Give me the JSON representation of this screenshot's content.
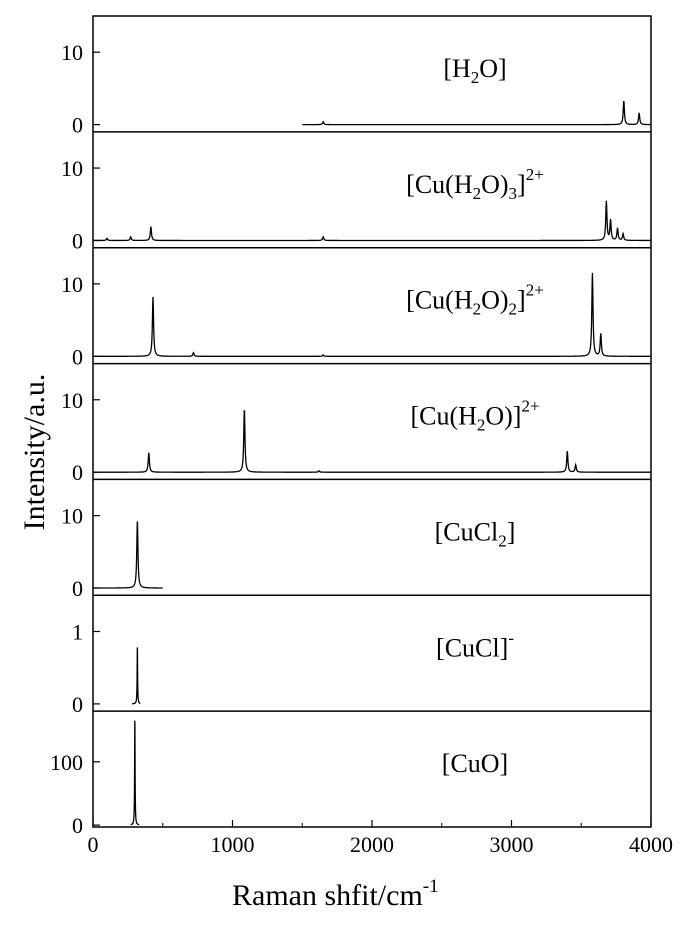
{
  "chart_data": {
    "type": "line",
    "xlabel": "Raman shfit/cm",
    "xlabel_sup": "-1",
    "ylabel": "Intensity/a.u.",
    "xlim": [
      0,
      4000
    ],
    "xticks": [
      0,
      1000,
      2000,
      3000,
      4000
    ],
    "grid": false,
    "legend": "none",
    "line_color": "#000000",
    "panels": [
      {
        "label": [
          {
            "t": "[H"
          },
          {
            "t": "2",
            "sub": true
          },
          {
            "t": "O]"
          }
        ],
        "ylim": [
          -1,
          15
        ],
        "yticks": [
          0,
          10
        ],
        "x_range": [
          1500,
          4000
        ],
        "peaks": [
          {
            "x": 1650,
            "y": 0.4
          },
          {
            "x": 3805,
            "y": 3.3
          },
          {
            "x": 3915,
            "y": 1.6
          }
        ]
      },
      {
        "label": [
          {
            "t": "[Cu(H"
          },
          {
            "t": "2",
            "sub": true
          },
          {
            "t": "O)"
          },
          {
            "t": "3",
            "sub": true
          },
          {
            "t": "]"
          },
          {
            "t": "2+",
            "sup": true
          }
        ],
        "ylim": [
          -1,
          15
        ],
        "yticks": [
          0,
          10
        ],
        "x_range": [
          0,
          4000
        ],
        "peaks": [
          {
            "x": 100,
            "y": 0.3
          },
          {
            "x": 270,
            "y": 0.5
          },
          {
            "x": 415,
            "y": 1.9
          },
          {
            "x": 1650,
            "y": 0.5
          },
          {
            "x": 3680,
            "y": 5.4
          },
          {
            "x": 3710,
            "y": 2.8
          },
          {
            "x": 3760,
            "y": 1.7
          },
          {
            "x": 3800,
            "y": 0.9
          }
        ]
      },
      {
        "label": [
          {
            "t": "[Cu(H"
          },
          {
            "t": "2",
            "sub": true
          },
          {
            "t": "O)"
          },
          {
            "t": "2",
            "sub": true
          },
          {
            "t": "]"
          },
          {
            "t": "2+",
            "sup": true
          }
        ],
        "ylim": [
          -1,
          15
        ],
        "yticks": [
          0,
          10
        ],
        "x_range": [
          0,
          4000
        ],
        "peaks": [
          {
            "x": 430,
            "y": 8.2
          },
          {
            "x": 720,
            "y": 0.5
          },
          {
            "x": 1650,
            "y": 0.2
          },
          {
            "x": 3580,
            "y": 11.5
          },
          {
            "x": 3640,
            "y": 3.1
          }
        ]
      },
      {
        "label": [
          {
            "t": "[Cu(H"
          },
          {
            "t": "2",
            "sub": true
          },
          {
            "t": "O)]"
          },
          {
            "t": "2+",
            "sup": true
          }
        ],
        "ylim": [
          -1,
          15
        ],
        "yticks": [
          0,
          10
        ],
        "x_range": [
          0,
          4000
        ],
        "peaks": [
          {
            "x": 400,
            "y": 2.7
          },
          {
            "x": 1085,
            "y": 8.8
          },
          {
            "x": 1620,
            "y": 0.2
          },
          {
            "x": 3400,
            "y": 2.9
          },
          {
            "x": 3460,
            "y": 1.0
          }
        ]
      },
      {
        "label": [
          {
            "t": "[CuCl"
          },
          {
            "t": "2",
            "sub": true
          },
          {
            "t": "]"
          }
        ],
        "ylim": [
          -1,
          15
        ],
        "yticks": [
          0,
          10
        ],
        "x_range": [
          0,
          500
        ],
        "peaks": [
          {
            "x": 318,
            "y": 9.2
          }
        ]
      },
      {
        "label": [
          {
            "t": "[CuCl]"
          },
          {
            "t": "-",
            "sup": true
          }
        ],
        "ylim": [
          -0.1,
          1.5
        ],
        "yticks": [
          0,
          1
        ],
        "x_range": [
          280,
          340
        ],
        "peaks": [
          {
            "x": 318,
            "y": 0.78
          }
        ]
      },
      {
        "label": [
          {
            "t": "[CuO]"
          }
        ],
        "ylim": [
          -3,
          180
        ],
        "yticks": [
          0,
          100
        ],
        "x_range": [
          270,
          330
        ],
        "peaks": [
          {
            "x": 300,
            "y": 165
          }
        ]
      }
    ]
  }
}
